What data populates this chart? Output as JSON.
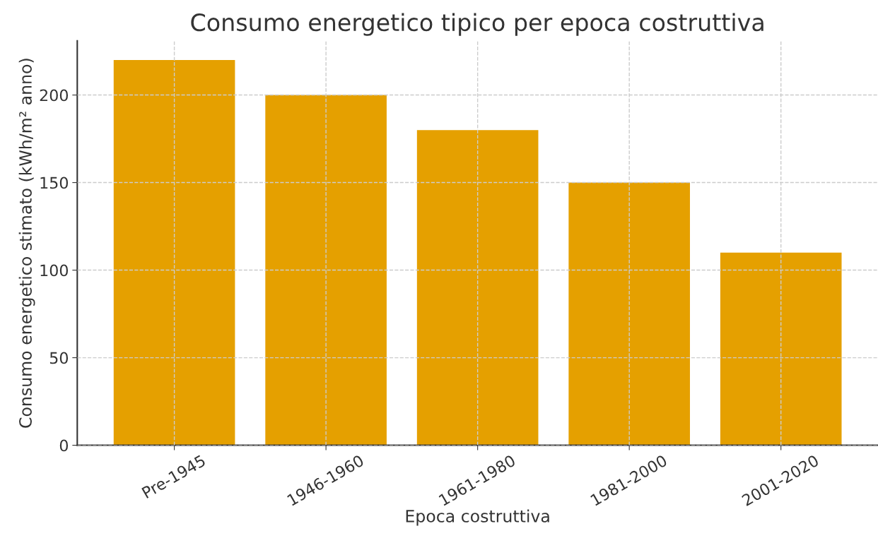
{
  "chart_data": {
    "type": "bar",
    "title": "Consumo energetico tipico per epoca costruttiva",
    "xlabel": "Epoca costruttiva",
    "ylabel": "Consumo energetico stimato (kWh/m² anno)",
    "categories": [
      "Pre-1945",
      "1946-1960",
      "1961-1980",
      "1981-2000",
      "2001-2020"
    ],
    "values": [
      220,
      200,
      180,
      150,
      110
    ],
    "color": "#e5a000",
    "ylim": [
      0,
      231
    ],
    "yticks": [
      0,
      50,
      100,
      150,
      200
    ],
    "grid": true
  }
}
